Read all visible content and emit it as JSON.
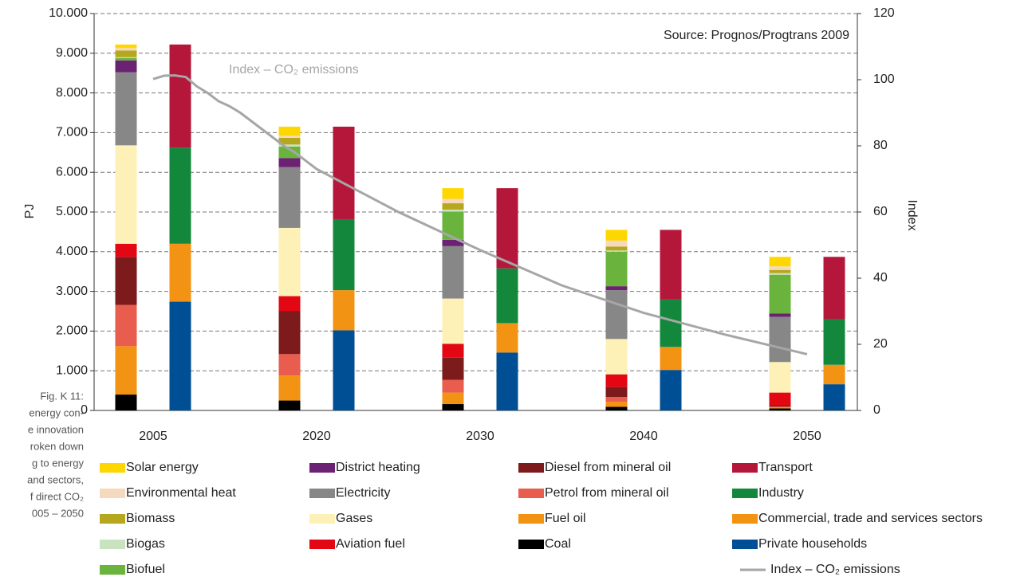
{
  "chart_data": {
    "type": "bar",
    "stacked": true,
    "source": "Source: Prognos/Progtrans 2009",
    "annotation": "Index – CO₂ emissions",
    "y_label": "PJ",
    "y2_label": "Index",
    "caption": [
      "Fig. K 11:",
      "energy con-",
      "e innovation",
      "roken down",
      "g to energy",
      "and sectors,",
      "f direct CO₂",
      "005 – 2050"
    ],
    "categories": [
      "2005",
      "2020",
      "2030",
      "2040",
      "2050"
    ],
    "ylim": [
      0,
      10000
    ],
    "yticks": [
      0,
      {
        "value": 1000,
        "label": "1.000"
      },
      {
        "value": 2000,
        "label": "2.000"
      },
      {
        "value": 3000,
        "label": "3.000"
      },
      {
        "value": 4000,
        "label": "4.000"
      },
      {
        "value": 5000,
        "label": "5.000"
      },
      {
        "value": 6000,
        "label": "6.000"
      },
      {
        "value": 7000,
        "label": "7.000"
      },
      {
        "value": 8000,
        "label": "8.000"
      },
      {
        "value": 9000,
        "label": "9.000"
      },
      {
        "value": 10000,
        "label": "10.000"
      }
    ],
    "y2lim": [
      0,
      120
    ],
    "y2ticks": [
      0,
      20,
      40,
      60,
      80,
      100,
      120
    ],
    "grid": true,
    "series": [
      {
        "name": "Solar energy",
        "color": "#ffd700",
        "stack": 0,
        "values": [
          90,
          230,
          270,
          270,
          240
        ]
      },
      {
        "name": "Environmental heat",
        "color": "#f6d9bd",
        "stack": 0,
        "values": [
          60,
          50,
          110,
          150,
          90
        ]
      },
      {
        "name": "Biomass",
        "color": "#b5a81e",
        "stack": 0,
        "values": [
          170,
          170,
          160,
          100,
          80
        ]
      },
      {
        "name": "Biogas",
        "color": "#c9e3c0",
        "stack": 0,
        "values": [
          20,
          50,
          50,
          30,
          40
        ]
      },
      {
        "name": "Biofuel",
        "color": "#6ab43e",
        "stack": 0,
        "values": [
          60,
          290,
          710,
          870,
          980
        ]
      },
      {
        "name": "District heating",
        "color": "#6b2272",
        "stack": 0,
        "values": [
          300,
          230,
          160,
          100,
          80
        ]
      },
      {
        "name": "Electricity",
        "color": "#878787",
        "stack": 0,
        "values": [
          1840,
          1530,
          1320,
          1230,
          1140
        ]
      },
      {
        "name": "Gases",
        "color": "#fdf1b8",
        "stack": 0,
        "values": [
          2480,
          1720,
          1140,
          890,
          770
        ]
      },
      {
        "name": "Aviation fuel",
        "color": "#e30613",
        "stack": 0,
        "values": [
          330,
          380,
          350,
          320,
          320
        ]
      },
      {
        "name": "Diesel from mineral oil",
        "color": "#7d1a1c",
        "stack": 0,
        "values": [
          1210,
          1080,
          560,
          250,
          30
        ]
      },
      {
        "name": "Petrol from mineral oil",
        "color": "#e85d4d",
        "stack": 0,
        "values": [
          1040,
          540,
          320,
          120,
          20
        ]
      },
      {
        "name": "Fuel oil",
        "color": "#f39314",
        "stack": 0,
        "values": [
          1220,
          630,
          290,
          130,
          30
        ]
      },
      {
        "name": "Coal",
        "color": "#000000",
        "stack": 0,
        "values": [
          400,
          250,
          160,
          90,
          50
        ]
      },
      {
        "name": "Transport",
        "color": "#b5173b",
        "stack": 1,
        "values": [
          2600,
          2330,
          2020,
          1750,
          1570
        ]
      },
      {
        "name": "Industry",
        "color": "#13883d",
        "stack": 1,
        "values": [
          2420,
          1790,
          1380,
          1200,
          1150
        ]
      },
      {
        "name": "Commercial, trade and services sectors",
        "color": "#f39314",
        "stack": 1,
        "values": [
          1460,
          1010,
          740,
          580,
          490
        ]
      },
      {
        "name": "Private households",
        "color": "#004e93",
        "stack": 1,
        "values": [
          2740,
          2020,
          1460,
          1020,
          660
        ]
      }
    ],
    "line": {
      "name": "Index – CO₂ emissions",
      "color": "#a6a6a6",
      "axis": "y2",
      "x": [
        2005,
        2006,
        2007,
        2008,
        2009,
        2010,
        2011,
        2012,
        2013,
        2014,
        2015,
        2016,
        2017,
        2018,
        2019,
        2020,
        2025,
        2030,
        2035,
        2040,
        2045,
        2050
      ],
      "values": [
        100.2,
        101.2,
        101.3,
        100.8,
        98,
        96,
        93.5,
        92,
        90,
        87.5,
        85,
        82.5,
        80,
        78,
        75.5,
        73,
        60,
        48.5,
        37.8,
        29.5,
        22.9,
        17
      ]
    }
  }
}
